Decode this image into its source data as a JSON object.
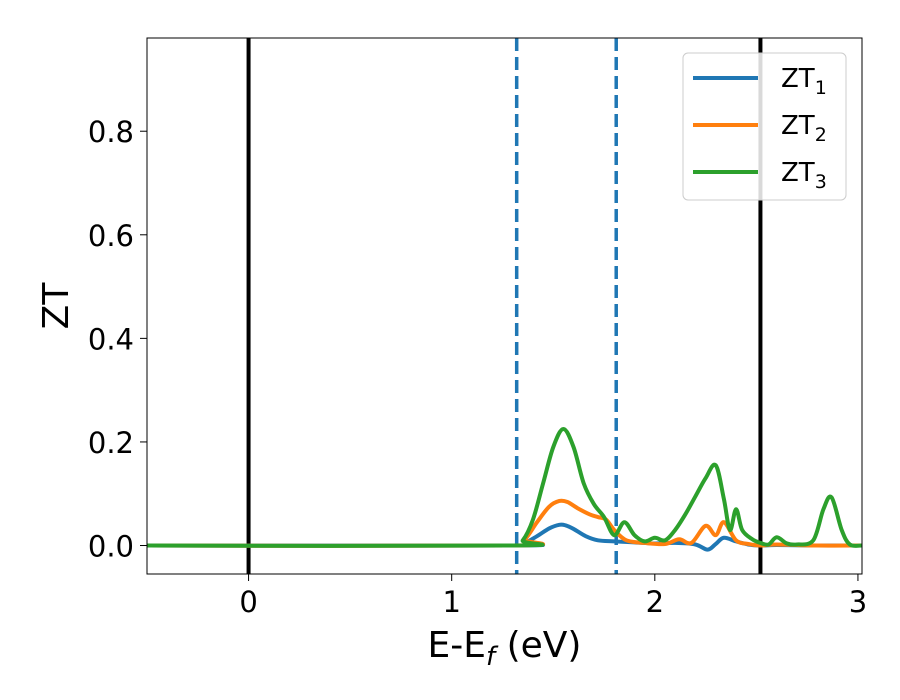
{
  "chart_data": {
    "type": "line",
    "title": "",
    "xlabel": "E-E",
    "xlabel_sub": "f",
    "xlabel_unit": " (eV)",
    "ylabel": "ZT",
    "xlim": [
      -0.5,
      3.02
    ],
    "ylim": [
      -0.055,
      0.98
    ],
    "xticks": [
      0,
      1,
      2,
      3
    ],
    "xtick_labels": [
      "0",
      "1",
      "2",
      "3"
    ],
    "yticks": [
      0.0,
      0.2,
      0.4,
      0.6,
      0.8
    ],
    "ytick_labels": [
      "0.0",
      "0.2",
      "0.4",
      "0.6",
      "0.8"
    ],
    "grid": false,
    "legend_position": "top-right",
    "vertical_lines": [
      {
        "x": 0.0,
        "style": "solid",
        "color": "#000000"
      },
      {
        "x": 2.52,
        "style": "solid",
        "color": "#000000"
      },
      {
        "x": 1.32,
        "style": "dashed",
        "color": "#1f77b4"
      },
      {
        "x": 1.81,
        "style": "dashed",
        "color": "#1f77b4"
      }
    ],
    "series": [
      {
        "name": "ZT",
        "name_sub": "1",
        "color": "#1f77b4",
        "x": [
          -0.5,
          1.3,
          1.36,
          1.42,
          1.48,
          1.53,
          1.56,
          1.6,
          1.66,
          1.72,
          1.8,
          1.9,
          2.0,
          2.1,
          2.2,
          2.26,
          2.3,
          2.34,
          2.4,
          2.46,
          2.52,
          2.6,
          2.8,
          3.02
        ],
        "y": [
          0.0,
          0.0,
          0.005,
          0.018,
          0.033,
          0.04,
          0.039,
          0.032,
          0.018,
          0.01,
          0.008,
          0.006,
          0.004,
          0.005,
          0.002,
          -0.008,
          0.003,
          0.015,
          0.008,
          0.002,
          0.0,
          0.001,
          0.0,
          0.0
        ]
      },
      {
        "name": "ZT",
        "name_sub": "2",
        "color": "#ff7f0e",
        "x": [
          -0.5,
          1.3,
          1.36,
          1.42,
          1.48,
          1.53,
          1.57,
          1.62,
          1.68,
          1.72,
          1.76,
          1.8,
          1.86,
          1.95,
          2.05,
          2.12,
          2.18,
          2.25,
          2.3,
          2.34,
          2.4,
          2.46,
          2.52,
          2.6,
          2.8,
          3.02
        ],
        "y": [
          0.0,
          0.0,
          0.012,
          0.045,
          0.075,
          0.086,
          0.084,
          0.072,
          0.06,
          0.055,
          0.05,
          0.03,
          0.01,
          0.005,
          0.003,
          0.012,
          0.005,
          0.038,
          0.02,
          0.045,
          0.01,
          0.003,
          0.0,
          0.002,
          0.0,
          0.0
        ]
      },
      {
        "name": "ZT",
        "name_sub": "3",
        "color": "#2ca02c",
        "x": [
          -0.5,
          1.3,
          1.35,
          1.4,
          1.45,
          1.5,
          1.55,
          1.6,
          1.65,
          1.7,
          1.75,
          1.8,
          1.85,
          1.9,
          1.95,
          2.0,
          2.05,
          2.1,
          2.15,
          2.2,
          2.25,
          2.3,
          2.34,
          2.37,
          2.4,
          2.43,
          2.48,
          2.52,
          2.56,
          2.6,
          2.65,
          2.7,
          2.78,
          2.83,
          2.87,
          2.92,
          2.96,
          3.02
        ],
        "y": [
          0.0,
          0.0,
          0.01,
          0.05,
          0.12,
          0.19,
          0.225,
          0.19,
          0.12,
          0.08,
          0.055,
          0.02,
          0.045,
          0.02,
          0.008,
          0.015,
          0.01,
          0.03,
          0.06,
          0.095,
          0.13,
          0.155,
          0.09,
          0.03,
          0.07,
          0.03,
          0.012,
          0.005,
          0.002,
          0.016,
          0.004,
          0.002,
          0.01,
          0.07,
          0.093,
          0.03,
          0.002,
          0.0
        ]
      }
    ]
  },
  "colors": {
    "axes": "#000000",
    "background": "#ffffff",
    "legend_border": "#cccccc"
  }
}
